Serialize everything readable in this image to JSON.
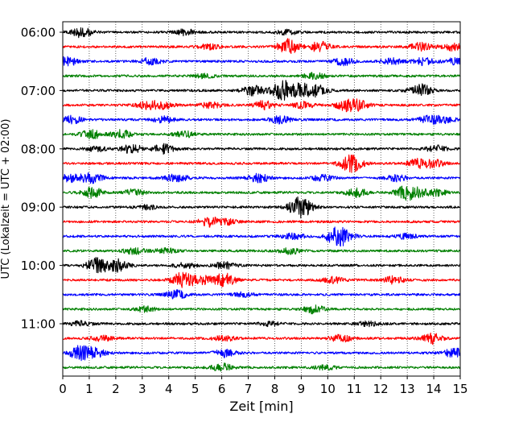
{
  "chart_data": {
    "type": "line",
    "title": "",
    "xlabel": "Zeit  [min]",
    "ylabel": "UTC (Lokalzeit = UTC + 02:00)",
    "xlim": [
      0,
      15
    ],
    "x_ticks": [
      "0",
      "1",
      "2",
      "3",
      "4",
      "5",
      "6",
      "7",
      "8",
      "9",
      "10",
      "11",
      "12",
      "13",
      "14",
      "15"
    ],
    "y_ticks": [
      "06:00",
      "07:00",
      "08:00",
      "09:00",
      "10:00",
      "11:00"
    ],
    "grid": {
      "vertical": true,
      "horizontal": false,
      "style": "dotted"
    },
    "trace_colors": [
      "#000000",
      "#ff0000",
      "#0000ff",
      "#008000"
    ],
    "trace_interval_minutes": 15,
    "first_trace_start": "06:00",
    "trace_start_times": [
      "06:00",
      "06:15",
      "06:30",
      "06:45",
      "07:00",
      "07:15",
      "07:30",
      "07:45",
      "08:00",
      "08:15",
      "08:30",
      "08:45",
      "09:00",
      "09:15",
      "09:30",
      "09:45",
      "10:00",
      "10:15",
      "10:30",
      "10:45",
      "11:00",
      "11:15",
      "11:30",
      "11:45"
    ],
    "bursts": [
      [
        [
          0.7,
          1.0
        ],
        [
          4.6,
          0.6
        ],
        [
          8.5,
          0.45
        ]
      ],
      [
        [
          8.5,
          1.5
        ],
        [
          9.7,
          1.0
        ],
        [
          13.5,
          0.8
        ],
        [
          14.7,
          0.7
        ],
        [
          5.5,
          0.5
        ]
      ],
      [
        [
          0.2,
          0.9
        ],
        [
          3.3,
          0.7
        ],
        [
          10.6,
          0.7
        ],
        [
          12.4,
          0.6
        ],
        [
          13.6,
          0.7
        ],
        [
          14.8,
          0.6
        ]
      ],
      [
        [
          9.5,
          0.6
        ],
        [
          5.3,
          0.4
        ]
      ],
      [
        [
          7.2,
          1.0
        ],
        [
          8.3,
          1.9
        ],
        [
          9.0,
          1.2
        ],
        [
          9.6,
          1.0
        ],
        [
          13.5,
          1.3
        ]
      ],
      [
        [
          3.2,
          0.8
        ],
        [
          3.8,
          0.6
        ],
        [
          5.6,
          0.6
        ],
        [
          7.6,
          0.8
        ],
        [
          9.1,
          0.6
        ],
        [
          10.7,
          1.0
        ],
        [
          11.2,
          0.8
        ]
      ],
      [
        [
          0.3,
          0.8
        ],
        [
          3.8,
          0.6
        ],
        [
          8.2,
          0.7
        ],
        [
          13.8,
          0.7
        ],
        [
          14.4,
          0.6
        ]
      ],
      [
        [
          1.1,
          0.9
        ],
        [
          2.2,
          0.8
        ],
        [
          4.6,
          0.6
        ]
      ],
      [
        [
          2.6,
          0.9
        ],
        [
          3.8,
          0.9
        ],
        [
          1.3,
          0.5
        ],
        [
          14.1,
          0.6
        ]
      ],
      [
        [
          10.8,
          1.0
        ],
        [
          11.0,
          0.8
        ],
        [
          13.4,
          0.8
        ],
        [
          14.0,
          0.7
        ]
      ],
      [
        [
          0.3,
          0.8
        ],
        [
          1.1,
          1.0
        ],
        [
          4.3,
          0.9
        ],
        [
          7.4,
          0.8
        ],
        [
          9.8,
          0.6
        ],
        [
          12.6,
          0.6
        ]
      ],
      [
        [
          1.1,
          1.0
        ],
        [
          2.7,
          0.6
        ],
        [
          11.1,
          0.9
        ],
        [
          12.9,
          1.0
        ],
        [
          13.3,
          0.9
        ],
        [
          14.1,
          0.6
        ]
      ],
      [
        [
          8.9,
          1.4
        ],
        [
          9.1,
          0.9
        ],
        [
          3.2,
          0.4
        ]
      ],
      [
        [
          5.5,
          0.9
        ],
        [
          6.2,
          0.5
        ]
      ],
      [
        [
          10.3,
          1.3
        ],
        [
          10.6,
          1.0
        ],
        [
          8.7,
          0.6
        ],
        [
          13.0,
          0.5
        ]
      ],
      [
        [
          2.7,
          0.6
        ],
        [
          3.9,
          0.5
        ],
        [
          8.6,
          0.6
        ]
      ],
      [
        [
          1.3,
          1.6
        ],
        [
          2.1,
          1.3
        ],
        [
          6.1,
          0.7
        ],
        [
          4.6,
          0.5
        ]
      ],
      [
        [
          4.5,
          1.4
        ],
        [
          5.2,
          0.9
        ],
        [
          6.1,
          1.3
        ],
        [
          10.2,
          0.6
        ],
        [
          12.5,
          0.7
        ]
      ],
      [
        [
          4.3,
          0.8
        ],
        [
          6.8,
          0.4
        ]
      ],
      [
        [
          9.5,
          0.8
        ],
        [
          3.1,
          0.5
        ]
      ],
      [
        [
          0.7,
          0.5
        ],
        [
          7.8,
          0.4
        ],
        [
          11.5,
          0.4
        ]
      ],
      [
        [
          10.5,
          0.7
        ],
        [
          13.9,
          1.1
        ],
        [
          1.5,
          0.5
        ],
        [
          6.1,
          0.5
        ]
      ],
      [
        [
          0.6,
          1.3
        ],
        [
          1.2,
          0.9
        ],
        [
          6.1,
          0.8
        ],
        [
          14.8,
          1.0
        ]
      ],
      [
        [
          6.0,
          0.8
        ],
        [
          9.9,
          0.4
        ]
      ]
    ]
  }
}
